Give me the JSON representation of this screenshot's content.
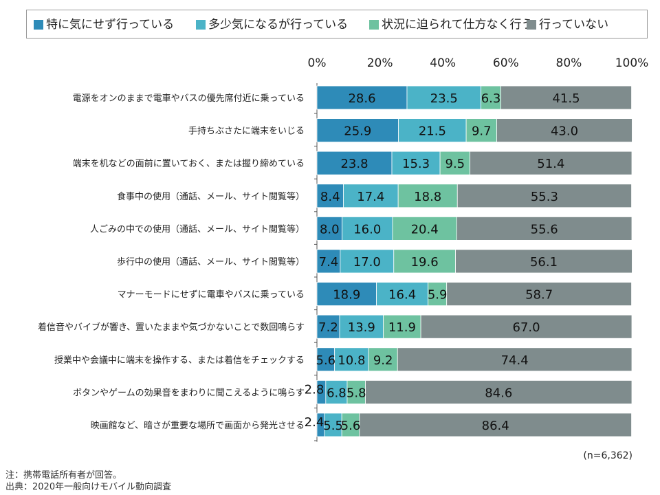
{
  "chart_data": {
    "type": "bar",
    "orientation": "horizontal",
    "stacked": true,
    "percent": true,
    "title": "",
    "xlim": [
      0,
      100
    ],
    "x_ticks": [
      "0%",
      "20%",
      "40%",
      "60%",
      "80%",
      "100%"
    ],
    "legend_position": "top",
    "categories": [
      "電源をオンのままで電車やバスの優先席付近に乗っている",
      "手持ちぶさたに端末をいじる",
      "端末を机などの面前に置いておく、または握り締めている",
      "食事中の使用（通話、メール、サイト閲覧等）",
      "人ごみの中での使用（通話、メール、サイト閲覧等）",
      "歩行中の使用（通話、メール、サイト閲覧等）",
      "マナーモードにせずに電車やバスに乗っている",
      "着信音やバイブが響き、置いたままや気づかないことで数回鳴らす",
      "授業中や会議中に端末を操作する、または着信をチェックする",
      "ボタンやゲームの効果音をまわりに聞こえるように鳴らす",
      "映画館など、暗さが重要な場所で画面から発光させる"
    ],
    "series": [
      {
        "name": "特に気にせず行っている",
        "color": "#2E8BB8",
        "values": [
          28.6,
          25.9,
          23.8,
          8.4,
          8.0,
          7.4,
          18.9,
          7.2,
          5.6,
          2.8,
          2.4
        ],
        "labels": [
          "28.6",
          "25.9",
          "23.8",
          "8.4",
          "8.0",
          "7.4",
          "18.9",
          "7.2",
          "5.6",
          "2.8",
          "2.4"
        ]
      },
      {
        "name": "多少気になるが行っている",
        "color": "#4BB3C7",
        "values": [
          23.5,
          21.5,
          15.3,
          17.4,
          16.0,
          17.0,
          16.4,
          13.9,
          10.8,
          6.8,
          5.5
        ],
        "labels": [
          "23.5",
          "21.5",
          "15.3",
          "17.4",
          "16.0",
          "17.0",
          "16.4",
          "13.9",
          "10.8",
          "6.8",
          "5.5"
        ]
      },
      {
        "name": "状況に迫られて仕方なく行う",
        "color": "#6EC2A0",
        "values": [
          6.3,
          9.7,
          9.5,
          18.8,
          20.4,
          19.6,
          5.9,
          11.9,
          9.2,
          5.8,
          5.6
        ],
        "labels": [
          "6.3",
          "9.7",
          "9.5",
          "18.8",
          "20.4",
          "19.6",
          "5.9",
          "11.9",
          "9.2",
          "5.8",
          "5.6"
        ]
      },
      {
        "name": "行っていない",
        "color": "#7F8C8D",
        "values": [
          41.5,
          43.0,
          51.4,
          55.3,
          55.6,
          56.1,
          58.7,
          67.0,
          74.4,
          84.6,
          86.4
        ],
        "labels": [
          "41.5",
          "43.0",
          "51.4",
          "55.3",
          "55.6",
          "56.1",
          "58.7",
          "67.0",
          "74.4",
          "84.6",
          "86.4"
        ]
      }
    ]
  },
  "footer": {
    "sample_size": "(n=6,362)",
    "note": "注：携帯電話所有者が回答。",
    "source": "出典：2020年一般向けモバイル動向調査"
  }
}
